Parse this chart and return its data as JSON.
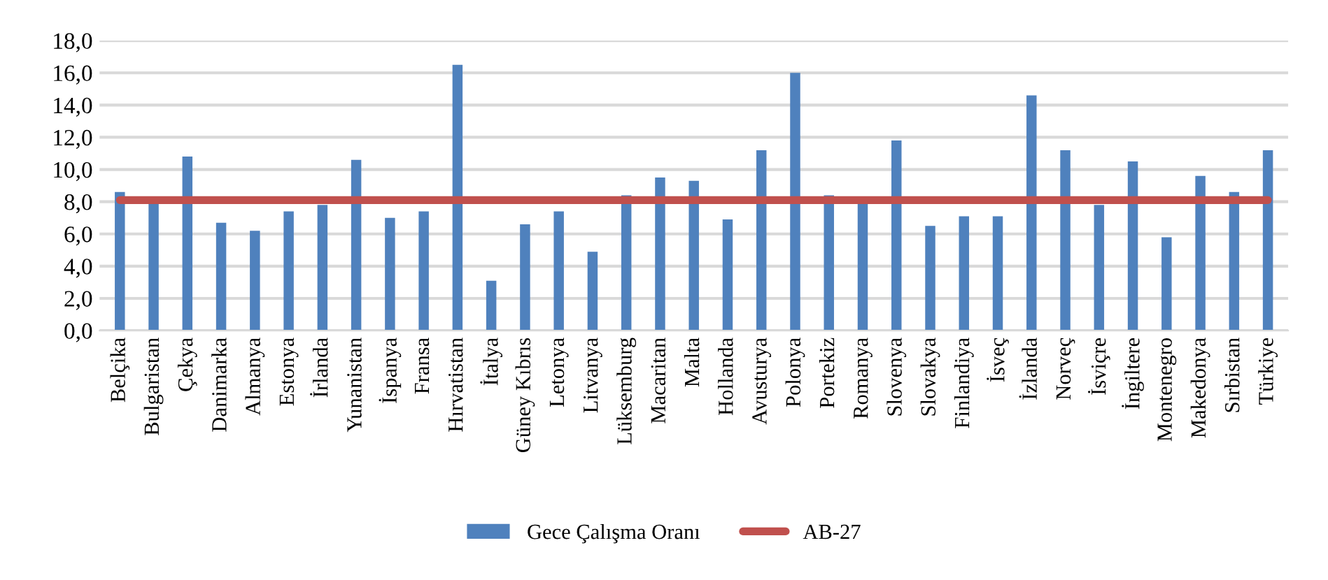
{
  "chart_data": {
    "type": "bar",
    "categories": [
      "Belçika",
      "Bulgaristan",
      "Çekya",
      "Danimarka",
      "Almanya",
      "Estonya",
      "İrlanda",
      "Yunanistan",
      "İspanya",
      "Fransa",
      "Hırvatistan",
      "İtalya",
      "Güney Kıbrıs",
      "Letonya",
      "Litvanya",
      "Lüksemburg",
      "Macaritan",
      "Malta",
      "Hollanda",
      "Avusturya",
      "Polonya",
      "Portekiz",
      "Romanya",
      "Slovenya",
      "Slovakya",
      "Finlandiya",
      "İsveç",
      "İzlanda",
      "Norveç",
      "İsviçre",
      "İngiltere",
      "Montenegro",
      "Makedonya",
      "Sırbistan",
      "Türkiye"
    ],
    "series": [
      {
        "name": "Gece Çalışma Oranı",
        "color": "#4f81bd",
        "values": [
          8.6,
          7.9,
          10.8,
          6.7,
          6.2,
          7.4,
          7.8,
          10.6,
          7.0,
          7.4,
          16.5,
          3.1,
          6.6,
          7.4,
          4.9,
          8.4,
          9.5,
          9.3,
          6.9,
          11.2,
          16.0,
          8.4,
          7.9,
          11.8,
          6.5,
          7.1,
          7.1,
          14.6,
          11.2,
          7.8,
          10.5,
          5.8,
          9.6,
          8.6,
          11.2
        ]
      },
      {
        "name": "AB-27",
        "type": "line",
        "color": "#c0504d",
        "values": [
          8.1,
          8.1,
          8.1,
          8.1,
          8.1,
          8.1,
          8.1,
          8.1,
          8.1,
          8.1,
          8.1,
          8.1,
          8.1,
          8.1,
          8.1,
          8.1,
          8.1,
          8.1,
          8.1,
          8.1,
          8.1,
          8.1,
          8.1,
          8.1,
          8.1,
          8.1,
          8.1,
          8.1,
          8.1,
          8.1,
          8.1,
          8.1,
          8.1,
          8.1,
          8.1
        ]
      }
    ],
    "ylim": [
      0,
      18
    ],
    "yticks": [
      {
        "value": 0,
        "label": "0,0"
      },
      {
        "value": 2,
        "label": "2,0"
      },
      {
        "value": 4,
        "label": "4,0"
      },
      {
        "value": 6,
        "label": "6,0"
      },
      {
        "value": 8,
        "label": "8,0"
      },
      {
        "value": 10,
        "label": "10,0"
      },
      {
        "value": 12,
        "label": "12,0"
      },
      {
        "value": 14,
        "label": "14,0"
      },
      {
        "value": 16,
        "label": "16,0"
      },
      {
        "value": 18,
        "label": "18,0"
      }
    ],
    "grid": "y",
    "legend": "bottom"
  }
}
